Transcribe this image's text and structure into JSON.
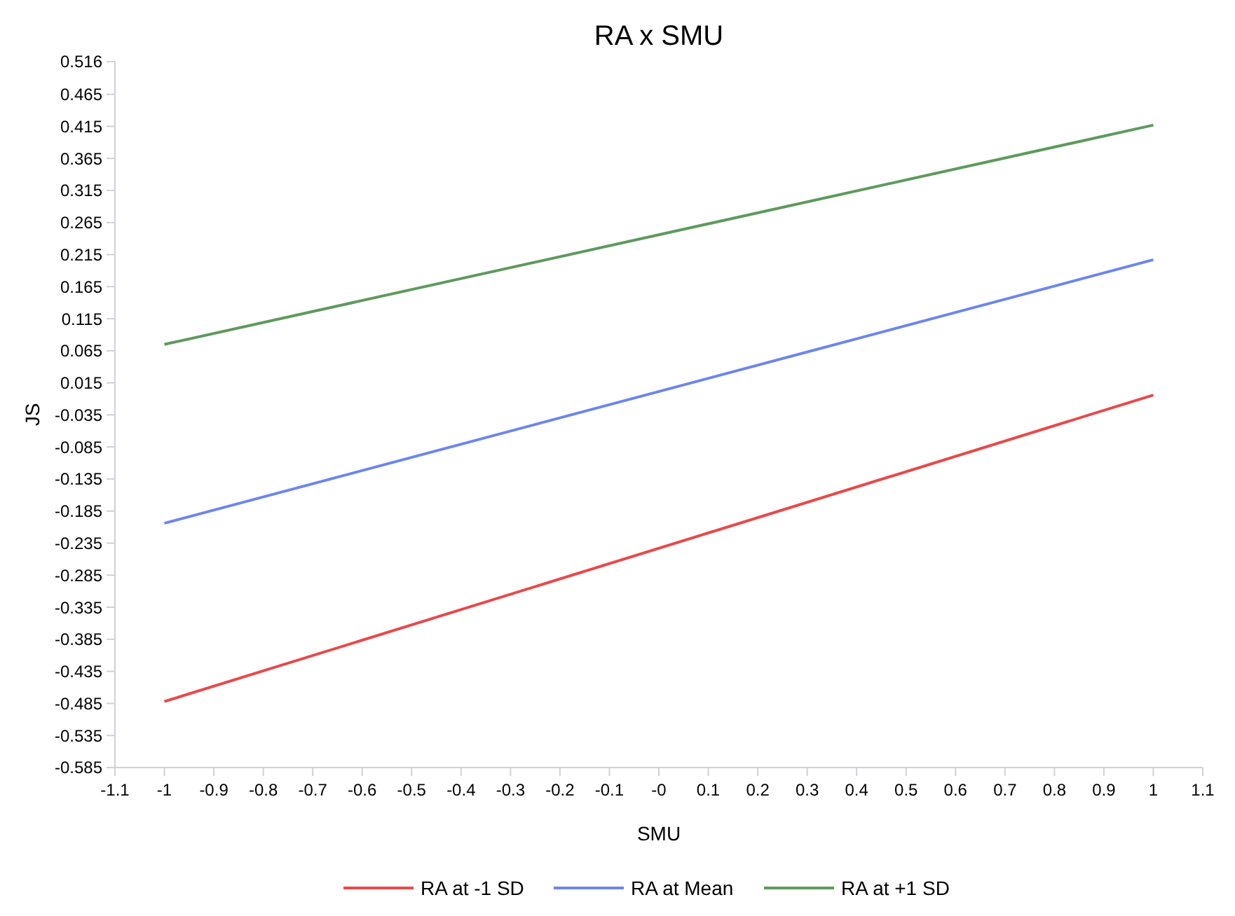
{
  "chart_data": {
    "type": "line",
    "title": "RA x SMU",
    "xlabel": "SMU",
    "ylabel": "JS",
    "x": [
      -1,
      1
    ],
    "series": [
      {
        "name": "RA at -1 SD",
        "color": "#e8494a",
        "values": [
          -0.482,
          -0.004
        ]
      },
      {
        "name": "RA at Mean",
        "color": "#6b86ee",
        "values": [
          -0.204,
          0.207
        ]
      },
      {
        "name": "RA at +1 SD",
        "color": "#5d9a5d",
        "values": [
          0.075,
          0.417
        ]
      }
    ],
    "xlim": [
      -1.1,
      1.1
    ],
    "xticks": [
      -1.1,
      -1,
      -0.9,
      -0.8,
      -0.7,
      -0.6,
      -0.5,
      -0.4,
      -0.3,
      -0.2,
      -0.1,
      {
        "value": 0,
        "label": "-0"
      },
      0.1,
      0.2,
      0.3,
      0.4,
      0.5,
      0.6,
      0.7,
      0.8,
      0.9,
      1,
      1.1
    ],
    "ylim": [
      -0.585,
      0.516
    ],
    "yticks": [
      -0.585,
      -0.535,
      -0.485,
      -0.435,
      -0.385,
      -0.335,
      -0.285,
      -0.235,
      -0.185,
      -0.135,
      -0.085,
      -0.035,
      0.015,
      0.065,
      0.115,
      0.165,
      0.215,
      0.265,
      0.315,
      0.365,
      0.415,
      0.465,
      0.516
    ],
    "grid": false,
    "legend": "bottom",
    "marker": "none",
    "line_style": "solid"
  }
}
